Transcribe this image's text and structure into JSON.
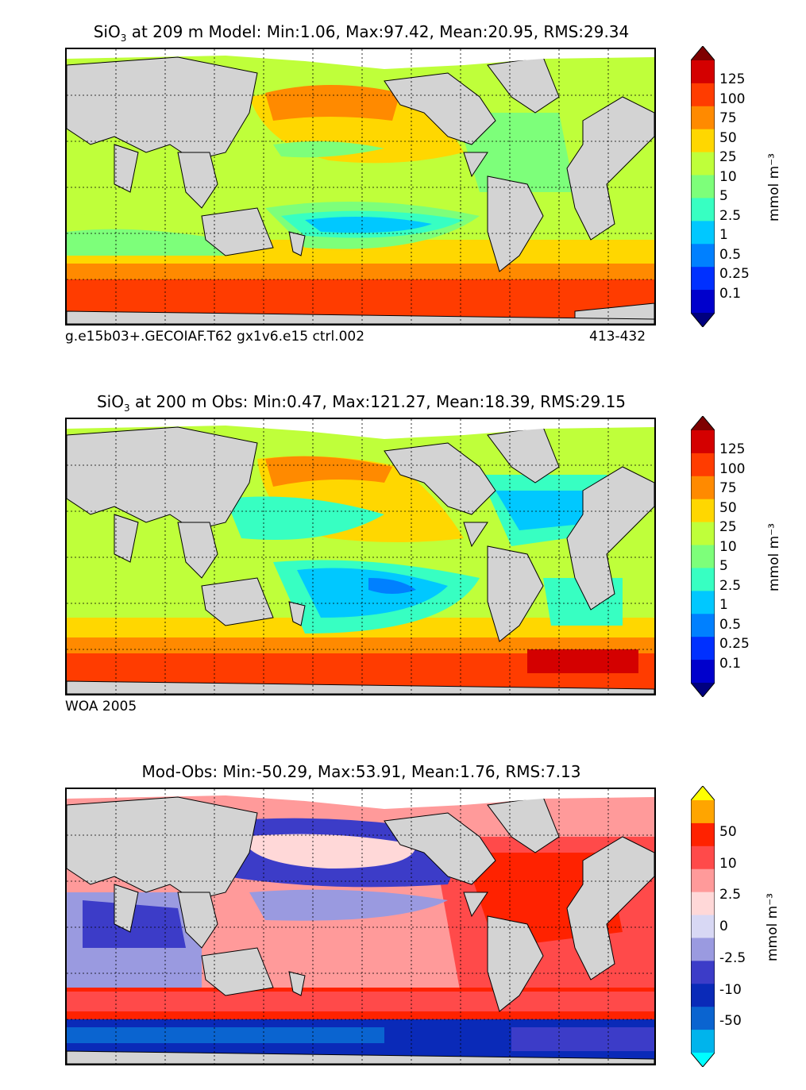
{
  "panels": [
    {
      "id": "model",
      "title_pre": "SiO",
      "title_sub": "3",
      "title_post": " at 209 m Model: Min:1.06, Max:97.42, Mean:20.95, RMS:29.34",
      "note_left": "g.e15b03+.GECOIAF.T62 gx1v6.e15 ctrl.002",
      "note_right": "413-432",
      "colorbar": {
        "labels": [
          "125",
          "100",
          "75",
          "50",
          "25",
          "10",
          "5",
          "2.5",
          "1",
          "0.5",
          "0.25",
          "0.1"
        ],
        "colors": [
          "#7f0000",
          "#d40000",
          "#ff3c00",
          "#ff8a00",
          "#ffd700",
          "#bfff3a",
          "#7dff7a",
          "#37ffc2",
          "#00c8ff",
          "#0080ff",
          "#0030ff",
          "#0000cc",
          "#00007f"
        ],
        "unit": "mmol m⁻³"
      }
    },
    {
      "id": "obs",
      "title_pre": "SiO",
      "title_sub": "3",
      "title_post": " at 200 m Obs: Min:0.47, Max:121.27, Mean:18.39, RMS:29.15",
      "note_left": "WOA 2005",
      "note_right": "",
      "colorbar": {
        "labels": [
          "125",
          "100",
          "75",
          "50",
          "25",
          "10",
          "5",
          "2.5",
          "1",
          "0.5",
          "0.25",
          "0.1"
        ],
        "colors": [
          "#7f0000",
          "#d40000",
          "#ff3c00",
          "#ff8a00",
          "#ffd700",
          "#bfff3a",
          "#7dff7a",
          "#37ffc2",
          "#00c8ff",
          "#0080ff",
          "#0030ff",
          "#0000cc",
          "#00007f"
        ],
        "unit": "mmol m⁻³"
      }
    },
    {
      "id": "diff",
      "title_pre": "Mod-Obs: Min:-50.29, Max:53.91, Mean:1.76, RMS:7.13",
      "title_sub": "",
      "title_post": "",
      "note_left": "",
      "note_right": "",
      "colorbar": {
        "labels": [
          "50",
          "10",
          "2.5",
          "0",
          "-2.5",
          "-10",
          "-50"
        ],
        "colors": [
          "#ffff00",
          "#ffa500",
          "#ff2200",
          "#ff4a4a",
          "#ff9a9a",
          "#ffd8d8",
          "#d8d8f4",
          "#9a9ae0",
          "#3c3cc8",
          "#0a2ab8",
          "#0a64d0",
          "#00b4ec",
          "#00ffff"
        ],
        "unit": "mmol m⁻³"
      }
    }
  ],
  "colors": {
    "land": "#d3d3d3",
    "missing": "#ffffff"
  }
}
